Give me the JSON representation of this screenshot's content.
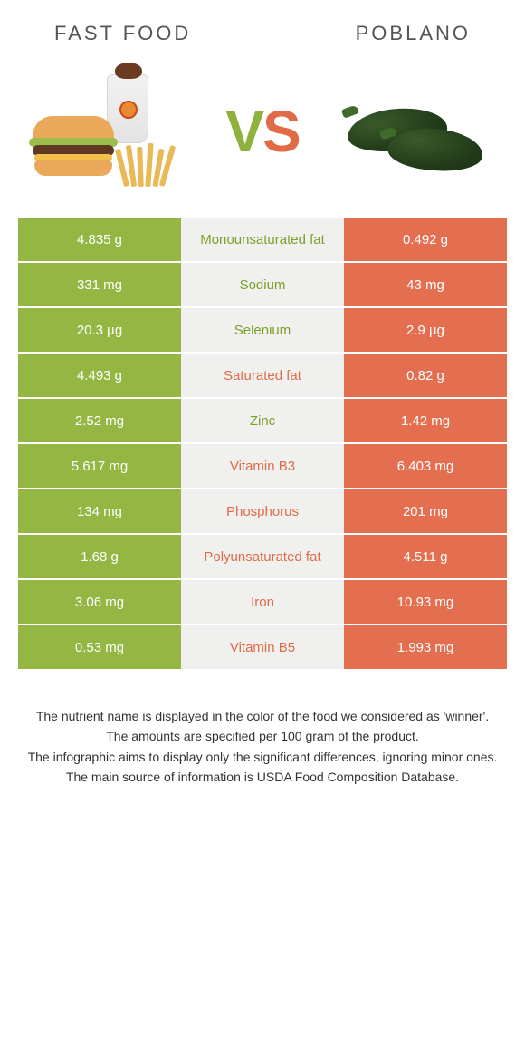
{
  "colors": {
    "left": "#94b744",
    "right": "#e46f50",
    "mid_bg": "#f0f0ee",
    "left_text": "#79a128",
    "right_text": "#e16a47"
  },
  "header": {
    "left_title": "FAST FOOD",
    "right_title": "POBLANO"
  },
  "vs": {
    "v": "V",
    "s": "S"
  },
  "images": {
    "left_alt": "fast-food-meal",
    "right_alt": "poblano-peppers"
  },
  "table": {
    "rows": [
      {
        "left": "4.835 g",
        "label": "Monounsaturated fat",
        "right": "0.492 g",
        "winner": "left"
      },
      {
        "left": "331 mg",
        "label": "Sodium",
        "right": "43 mg",
        "winner": "left"
      },
      {
        "left": "20.3 µg",
        "label": "Selenium",
        "right": "2.9 µg",
        "winner": "left"
      },
      {
        "left": "4.493 g",
        "label": "Saturated fat",
        "right": "0.82 g",
        "winner": "right"
      },
      {
        "left": "2.52 mg",
        "label": "Zinc",
        "right": "1.42 mg",
        "winner": "left"
      },
      {
        "left": "5.617 mg",
        "label": "Vitamin B3",
        "right": "6.403 mg",
        "winner": "right"
      },
      {
        "left": "134 mg",
        "label": "Phosphorus",
        "right": "201 mg",
        "winner": "right"
      },
      {
        "left": "1.68 g",
        "label": "Polyunsaturated fat",
        "right": "4.511 g",
        "winner": "right"
      },
      {
        "left": "3.06 mg",
        "label": "Iron",
        "right": "10.93 mg",
        "winner": "right"
      },
      {
        "left": "0.53 mg",
        "label": "Vitamin B5",
        "right": "1.993 mg",
        "winner": "right"
      }
    ]
  },
  "notes": {
    "line1": "The nutrient name is displayed in the color of the food we considered as 'winner'.",
    "line2": "The amounts are specified per 100 gram of the product.",
    "line3": "The infographic aims to display only the significant differences, ignoring minor ones.",
    "line4": "The main source of information is USDA Food Composition Database."
  }
}
